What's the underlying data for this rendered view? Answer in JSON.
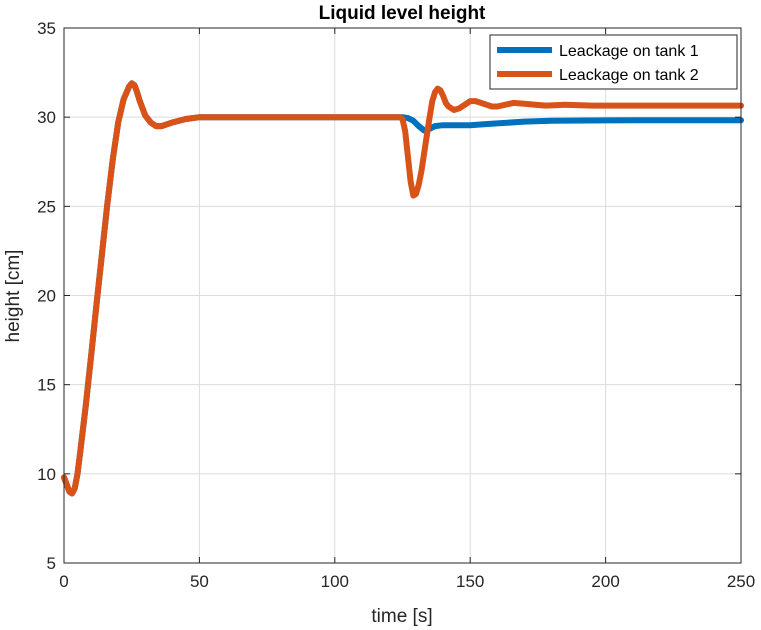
{
  "chart_data": {
    "type": "line",
    "title": "Liquid level height",
    "xlabel": "time [s]",
    "ylabel": "height [cm]",
    "xlim": [
      0,
      250
    ],
    "ylim": [
      5,
      35
    ],
    "xticks": [
      0,
      50,
      100,
      150,
      200,
      250
    ],
    "yticks": [
      5,
      10,
      15,
      20,
      25,
      30,
      35
    ],
    "grid": true,
    "legend_position": "top-right",
    "series": [
      {
        "name": "Leackage on tank 1",
        "color": "#0072BD",
        "x": [
          0,
          1,
          2,
          3,
          4,
          5,
          6,
          8,
          10,
          12,
          14,
          16,
          18,
          20,
          22,
          24,
          25,
          26,
          27,
          28,
          30,
          32,
          34,
          36,
          38,
          40,
          45,
          50,
          60,
          80,
          100,
          110,
          120,
          125,
          127,
          129,
          131,
          133,
          135,
          137,
          140,
          145,
          150,
          155,
          160,
          170,
          180,
          200,
          220,
          250
        ],
        "y": [
          9.8,
          9.4,
          9.0,
          8.9,
          9.2,
          10.0,
          11.2,
          13.8,
          16.6,
          19.5,
          22.3,
          25.1,
          27.6,
          29.7,
          31.0,
          31.7,
          31.9,
          31.8,
          31.4,
          30.9,
          30.1,
          29.7,
          29.5,
          29.5,
          29.6,
          29.7,
          29.9,
          30.0,
          30.0,
          30.0,
          30.0,
          30.0,
          30.0,
          30.0,
          29.95,
          29.8,
          29.5,
          29.25,
          29.35,
          29.5,
          29.55,
          29.55,
          29.55,
          29.6,
          29.65,
          29.75,
          29.8,
          29.82,
          29.83,
          29.83
        ]
      },
      {
        "name": "Leackage on tank 2",
        "color": "#D95319",
        "x": [
          0,
          1,
          2,
          3,
          4,
          5,
          6,
          8,
          10,
          12,
          14,
          16,
          18,
          20,
          22,
          24,
          25,
          26,
          27,
          28,
          30,
          32,
          34,
          36,
          38,
          40,
          45,
          50,
          60,
          80,
          100,
          110,
          120,
          124,
          125,
          126,
          127,
          128,
          129,
          130,
          131,
          132,
          133,
          134,
          135,
          136,
          137,
          138,
          139,
          140,
          141,
          142,
          144,
          146,
          148,
          150,
          152,
          154,
          156,
          158,
          160,
          163,
          166,
          170,
          174,
          178,
          185,
          195,
          210,
          230,
          250
        ],
        "y": [
          9.8,
          9.4,
          9.0,
          8.9,
          9.2,
          10.0,
          11.2,
          13.8,
          16.6,
          19.5,
          22.3,
          25.1,
          27.6,
          29.7,
          31.0,
          31.7,
          31.9,
          31.8,
          31.4,
          30.9,
          30.1,
          29.7,
          29.5,
          29.5,
          29.6,
          29.7,
          29.9,
          30.0,
          30.0,
          30.0,
          30.0,
          30.0,
          30.0,
          30.0,
          29.9,
          29.2,
          27.8,
          26.4,
          25.6,
          25.7,
          26.2,
          27.0,
          28.0,
          29.0,
          30.0,
          30.9,
          31.4,
          31.6,
          31.5,
          31.2,
          30.8,
          30.6,
          30.4,
          30.5,
          30.7,
          30.9,
          30.9,
          30.8,
          30.7,
          30.6,
          30.6,
          30.7,
          30.8,
          30.75,
          30.7,
          30.65,
          30.7,
          30.65,
          30.65,
          30.65,
          30.65
        ]
      }
    ]
  }
}
